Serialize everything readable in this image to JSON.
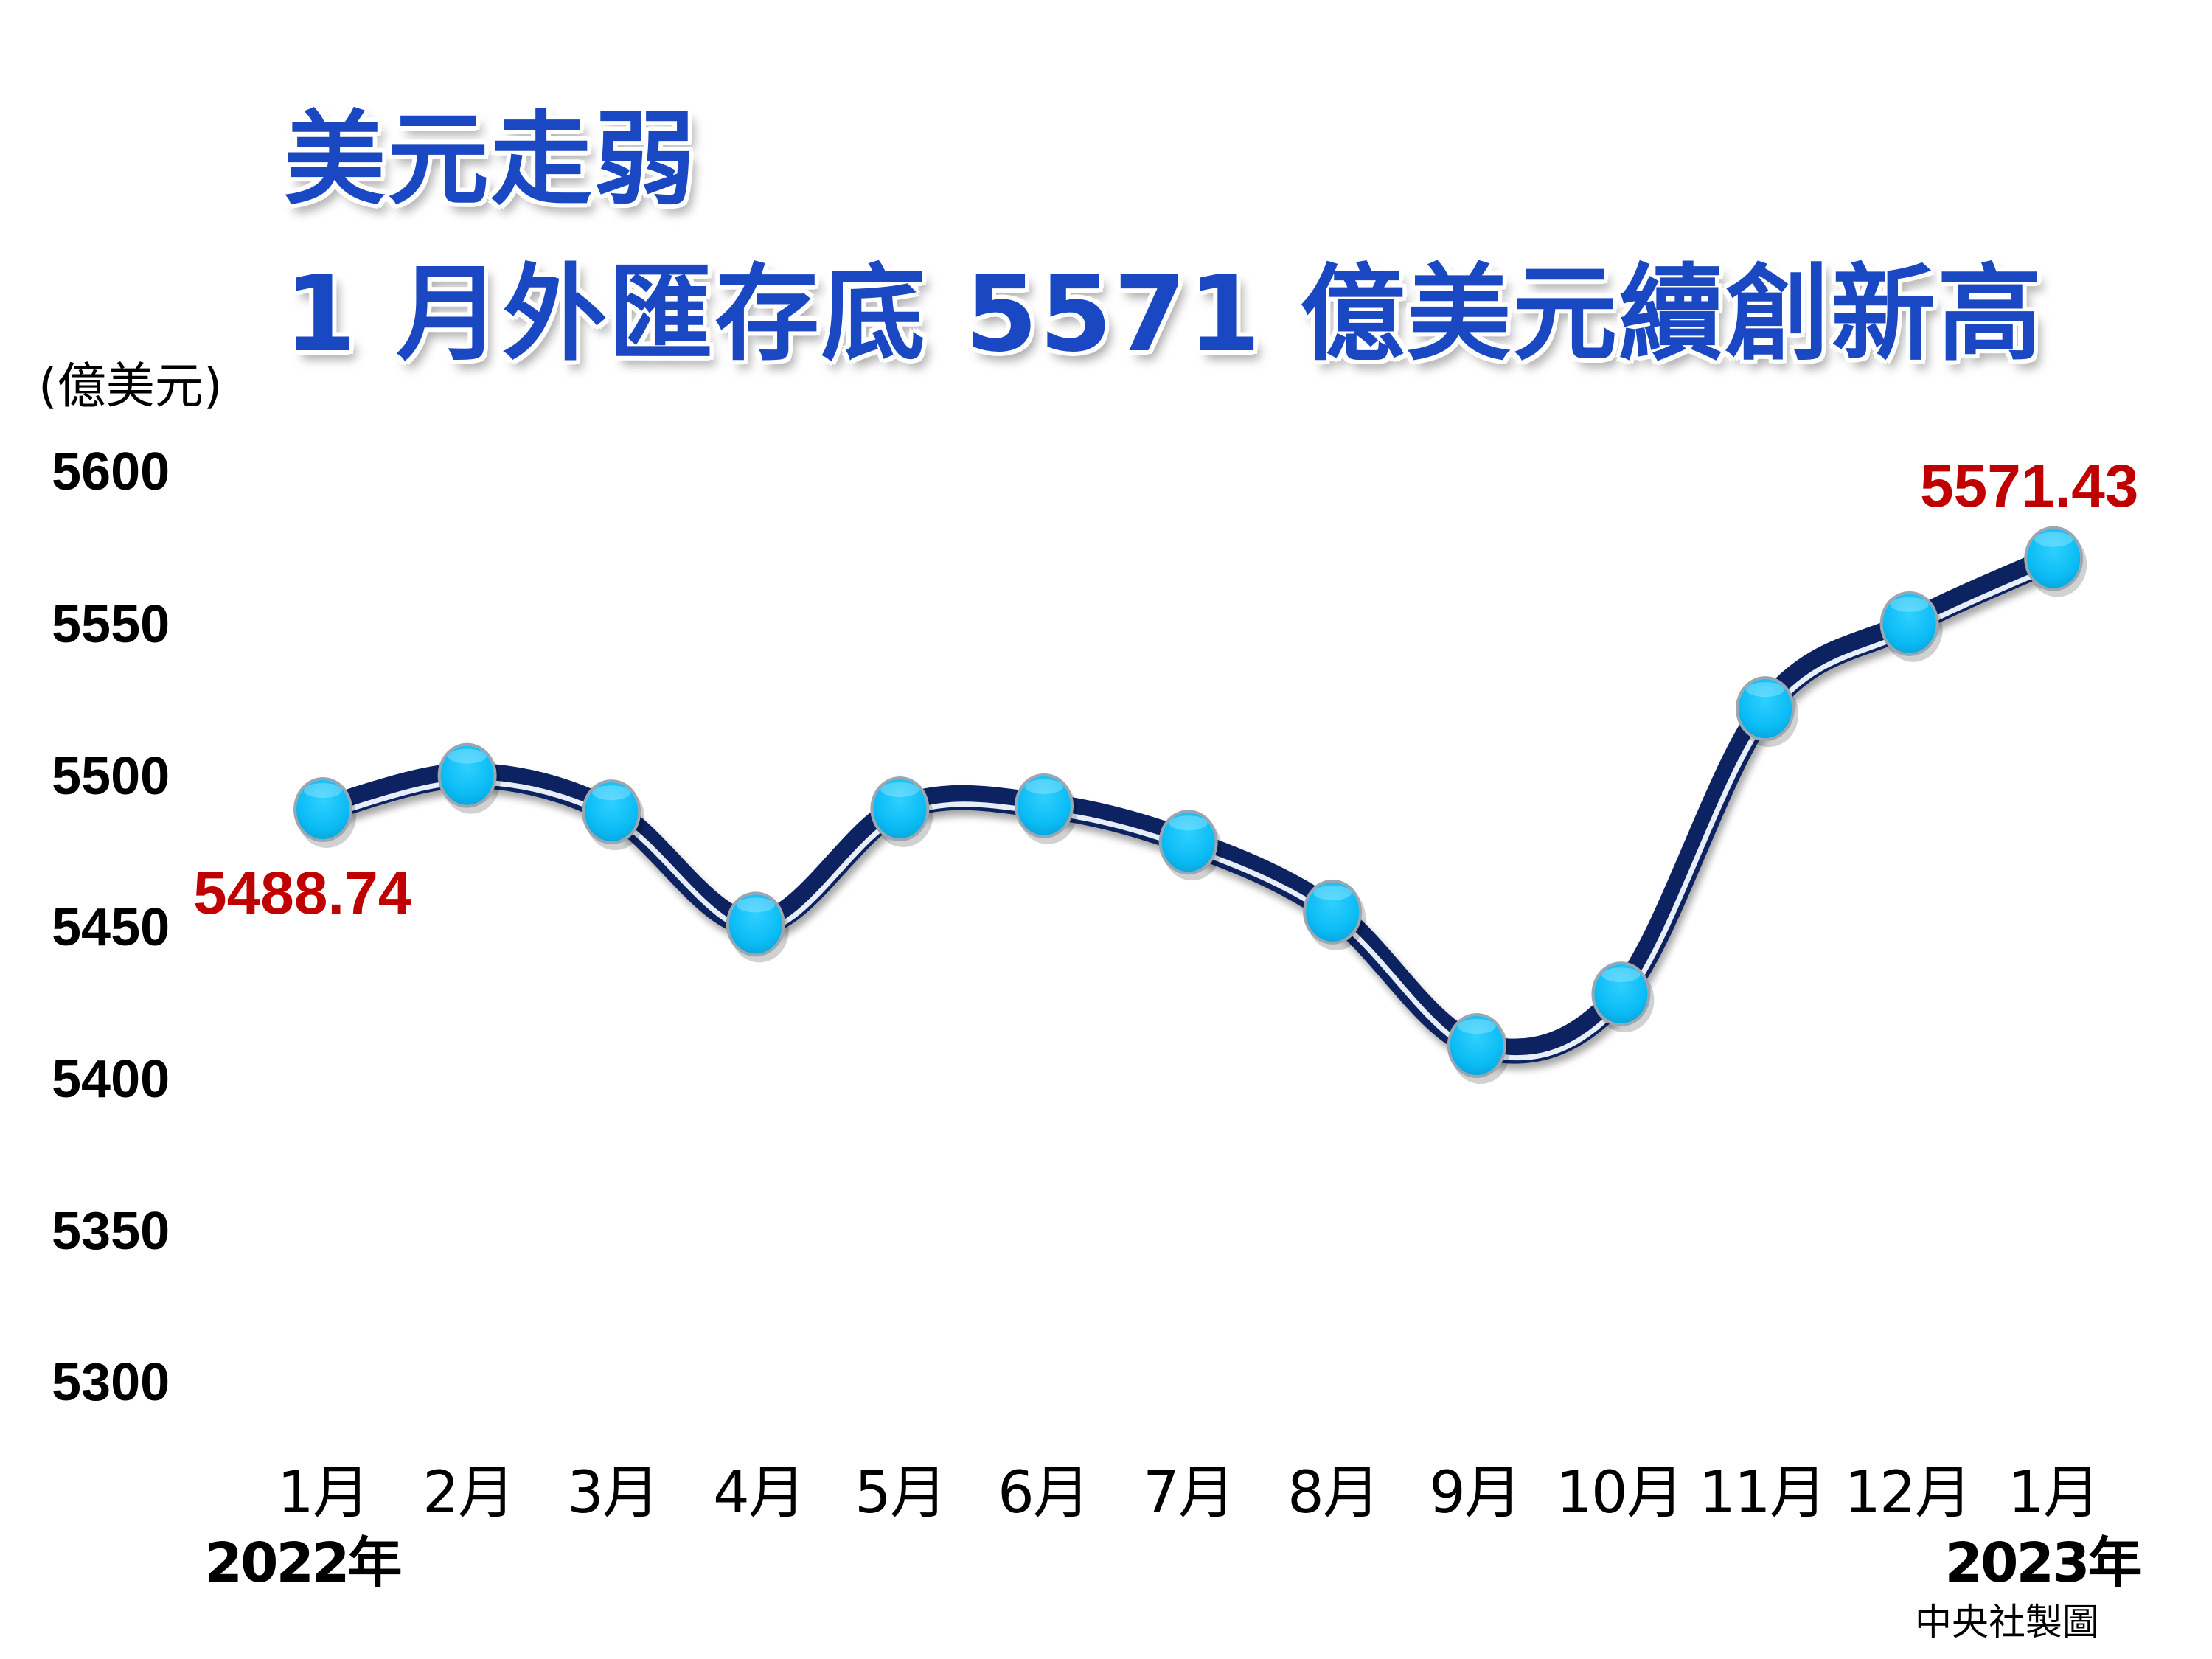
{
  "title": {
    "line1": "美元走弱",
    "line2": "1 月外匯存底 5571 億美元續創新高"
  },
  "unit_label": "(億美元)",
  "credit": "中央社製圖",
  "colors": {
    "title": "#1a47c2",
    "line": "#0d2461",
    "line_highlight": "#e8eef7",
    "marker_fill": "#0bbcf5",
    "marker_border": "#9aa7b3",
    "data_label": "#c00000"
  },
  "y_axis": {
    "ticks": [
      "5600",
      "5550",
      "5500",
      "5450",
      "5400",
      "5350",
      "5300"
    ]
  },
  "x_axis": {
    "ticks": [
      "1月",
      "2月",
      "3月",
      "4月",
      "5月",
      "6月",
      "7月",
      "8月",
      "9月",
      "10月",
      "11月",
      "12月",
      "1月"
    ],
    "year_start": "2022年",
    "year_end": "2023年"
  },
  "annotations": {
    "first": "5488.74",
    "last": "5571.43"
  },
  "chart_data": {
    "type": "line",
    "title": "美元走弱 1 月外匯存底 5571 億美元續創新高",
    "xlabel": "",
    "ylabel": "(億美元)",
    "categories": [
      "2022年1月",
      "2月",
      "3月",
      "4月",
      "5月",
      "6月",
      "7月",
      "8月",
      "9月",
      "10月",
      "11月",
      "12月",
      "2023年1月"
    ],
    "series": [
      {
        "name": "外匯存底",
        "values": [
          5488.74,
          5500,
          5488,
          5451,
          5489,
          5490,
          5478,
          5455,
          5411,
          5428,
          5522,
          5550,
          5571.43
        ]
      }
    ],
    "ylim": [
      5300,
      5600
    ],
    "yticks": [
      5300,
      5350,
      5400,
      5450,
      5500,
      5550,
      5600
    ],
    "grid": false,
    "legend": "none",
    "smooth": true,
    "annotations": [
      {
        "index": 0,
        "text": "5488.74"
      },
      {
        "index": 12,
        "text": "5571.43"
      }
    ],
    "source": "中央社製圖"
  }
}
